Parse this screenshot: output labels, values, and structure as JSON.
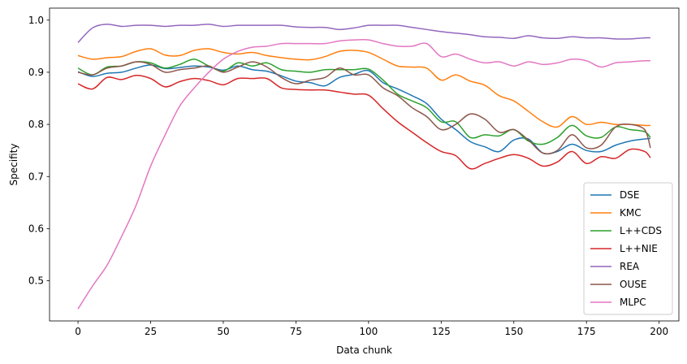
{
  "chart_data": {
    "type": "line",
    "xlabel": "Data chunk",
    "ylabel": "Specifity",
    "xlim": [
      -9.8,
      206.8
    ],
    "ylim": [
      0.423,
      1.023
    ],
    "xticks": [
      0,
      25,
      50,
      75,
      100,
      125,
      150,
      175,
      200
    ],
    "yticks": [
      0.5,
      0.6,
      0.7,
      0.8,
      0.9,
      1.0
    ],
    "ytick_labels": [
      "0.5",
      "0.6",
      "0.7",
      "0.8",
      "0.9",
      "1.0"
    ],
    "grid": false,
    "legend_position": "lower-right",
    "x": [
      0,
      5,
      10,
      15,
      20,
      25,
      30,
      35,
      40,
      45,
      50,
      55,
      60,
      65,
      70,
      75,
      80,
      85,
      90,
      95,
      100,
      105,
      110,
      115,
      120,
      125,
      130,
      135,
      140,
      145,
      150,
      155,
      160,
      165,
      170,
      175,
      180,
      185,
      190,
      195,
      197
    ],
    "series": [
      {
        "name": "DSE",
        "color": "#1f77b4",
        "values": [
          0.901,
          0.892,
          0.898,
          0.9,
          0.908,
          0.914,
          0.907,
          0.909,
          0.912,
          0.91,
          0.904,
          0.912,
          0.905,
          0.902,
          0.893,
          0.883,
          0.88,
          0.874,
          0.89,
          0.896,
          0.903,
          0.88,
          0.868,
          0.855,
          0.84,
          0.81,
          0.79,
          0.767,
          0.757,
          0.748,
          0.77,
          0.772,
          0.745,
          0.748,
          0.762,
          0.75,
          0.748,
          0.76,
          0.768,
          0.772,
          0.773
        ]
      },
      {
        "name": "KMC",
        "color": "#ff7f0e",
        "values": [
          0.932,
          0.925,
          0.928,
          0.93,
          0.94,
          0.945,
          0.933,
          0.932,
          0.942,
          0.945,
          0.938,
          0.935,
          0.938,
          0.932,
          0.928,
          0.925,
          0.924,
          0.93,
          0.94,
          0.942,
          0.938,
          0.925,
          0.912,
          0.91,
          0.908,
          0.885,
          0.895,
          0.883,
          0.875,
          0.855,
          0.845,
          0.825,
          0.805,
          0.795,
          0.815,
          0.8,
          0.804,
          0.8,
          0.8,
          0.798,
          0.798
        ]
      },
      {
        "name": "L++CDS",
        "color": "#2ca02c",
        "values": [
          0.908,
          0.895,
          0.91,
          0.912,
          0.92,
          0.918,
          0.908,
          0.915,
          0.925,
          0.912,
          0.902,
          0.918,
          0.912,
          0.918,
          0.905,
          0.902,
          0.9,
          0.905,
          0.905,
          0.905,
          0.906,
          0.885,
          0.858,
          0.845,
          0.832,
          0.805,
          0.805,
          0.775,
          0.78,
          0.778,
          0.79,
          0.768,
          0.762,
          0.775,
          0.798,
          0.778,
          0.775,
          0.795,
          0.79,
          0.786,
          0.775
        ]
      },
      {
        "name": "L++NIE",
        "color": "#d62728",
        "values": [
          0.878,
          0.868,
          0.89,
          0.886,
          0.894,
          0.888,
          0.872,
          0.882,
          0.888,
          0.884,
          0.876,
          0.888,
          0.888,
          0.888,
          0.87,
          0.867,
          0.866,
          0.866,
          0.862,
          0.858,
          0.856,
          0.83,
          0.805,
          0.785,
          0.765,
          0.748,
          0.74,
          0.715,
          0.725,
          0.735,
          0.742,
          0.735,
          0.72,
          0.728,
          0.748,
          0.725,
          0.738,
          0.735,
          0.752,
          0.748,
          0.736
        ]
      },
      {
        "name": "REA",
        "color": "#9467bd",
        "values": [
          0.957,
          0.985,
          0.992,
          0.988,
          0.99,
          0.99,
          0.988,
          0.99,
          0.99,
          0.992,
          0.988,
          0.99,
          0.99,
          0.99,
          0.99,
          0.987,
          0.986,
          0.986,
          0.982,
          0.985,
          0.99,
          0.99,
          0.99,
          0.986,
          0.982,
          0.978,
          0.975,
          0.972,
          0.968,
          0.967,
          0.965,
          0.97,
          0.966,
          0.965,
          0.968,
          0.966,
          0.966,
          0.964,
          0.964,
          0.966,
          0.966
        ]
      },
      {
        "name": "OUSE",
        "color": "#8c564b",
        "values": [
          0.9,
          0.895,
          0.908,
          0.912,
          0.92,
          0.915,
          0.9,
          0.905,
          0.908,
          0.912,
          0.9,
          0.91,
          0.92,
          0.91,
          0.89,
          0.878,
          0.885,
          0.89,
          0.908,
          0.895,
          0.895,
          0.87,
          0.855,
          0.832,
          0.815,
          0.79,
          0.8,
          0.82,
          0.81,
          0.785,
          0.79,
          0.77,
          0.745,
          0.75,
          0.78,
          0.755,
          0.76,
          0.795,
          0.8,
          0.79,
          0.755
        ]
      },
      {
        "name": "MLPC",
        "color": "#e377c2",
        "values": [
          0.446,
          0.49,
          0.53,
          0.585,
          0.645,
          0.72,
          0.78,
          0.835,
          0.87,
          0.9,
          0.925,
          0.94,
          0.948,
          0.95,
          0.955,
          0.955,
          0.955,
          0.955,
          0.96,
          0.962,
          0.962,
          0.955,
          0.95,
          0.95,
          0.955,
          0.93,
          0.935,
          0.925,
          0.918,
          0.92,
          0.912,
          0.92,
          0.915,
          0.918,
          0.925,
          0.922,
          0.91,
          0.918,
          0.92,
          0.922,
          0.922
        ]
      }
    ]
  }
}
